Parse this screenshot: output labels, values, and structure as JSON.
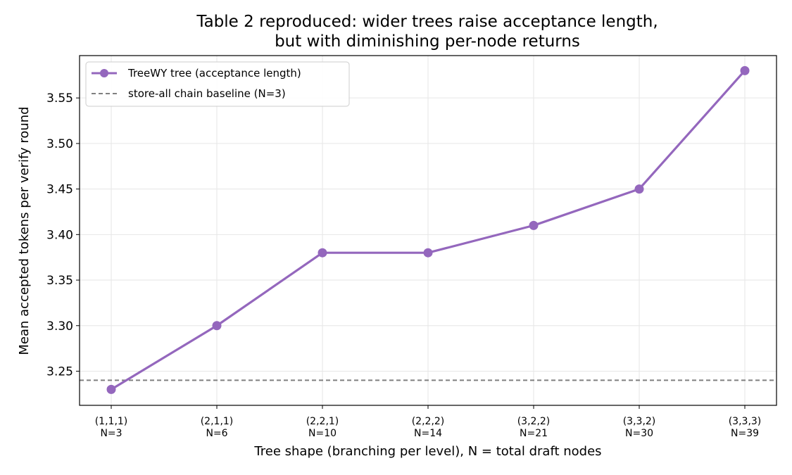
{
  "chart_data": {
    "type": "line",
    "title_lines": [
      "Table 2 reproduced: wider trees raise acceptance length,",
      "but with diminishing per-node returns"
    ],
    "xlabel": "Tree shape (branching per level), N = total draft nodes",
    "ylabel": "Mean accepted tokens per verify round",
    "categories": [
      {
        "shape": "(1,1,1)",
        "nodes": "N=3"
      },
      {
        "shape": "(2,1,1)",
        "nodes": "N=6"
      },
      {
        "shape": "(2,2,1)",
        "nodes": "N=10"
      },
      {
        "shape": "(2,2,2)",
        "nodes": "N=14"
      },
      {
        "shape": "(3,2,2)",
        "nodes": "N=21"
      },
      {
        "shape": "(3,3,2)",
        "nodes": "N=30"
      },
      {
        "shape": "(3,3,3)",
        "nodes": "N=39"
      }
    ],
    "series": [
      {
        "name": "TreeWY tree (acceptance length)",
        "color": "#9467bd",
        "values": [
          3.23,
          3.3,
          3.38,
          3.38,
          3.41,
          3.45,
          3.58
        ]
      }
    ],
    "baseline": {
      "name": "store-all chain baseline (N=3)",
      "value": 3.24,
      "color": "#808080",
      "style": "dashed"
    },
    "ylim": [
      3.2125,
      3.5965
    ],
    "yticks": [
      3.25,
      3.3,
      3.35,
      3.4,
      3.45,
      3.5,
      3.55
    ],
    "grid": true,
    "legend_position": "upper-left"
  }
}
